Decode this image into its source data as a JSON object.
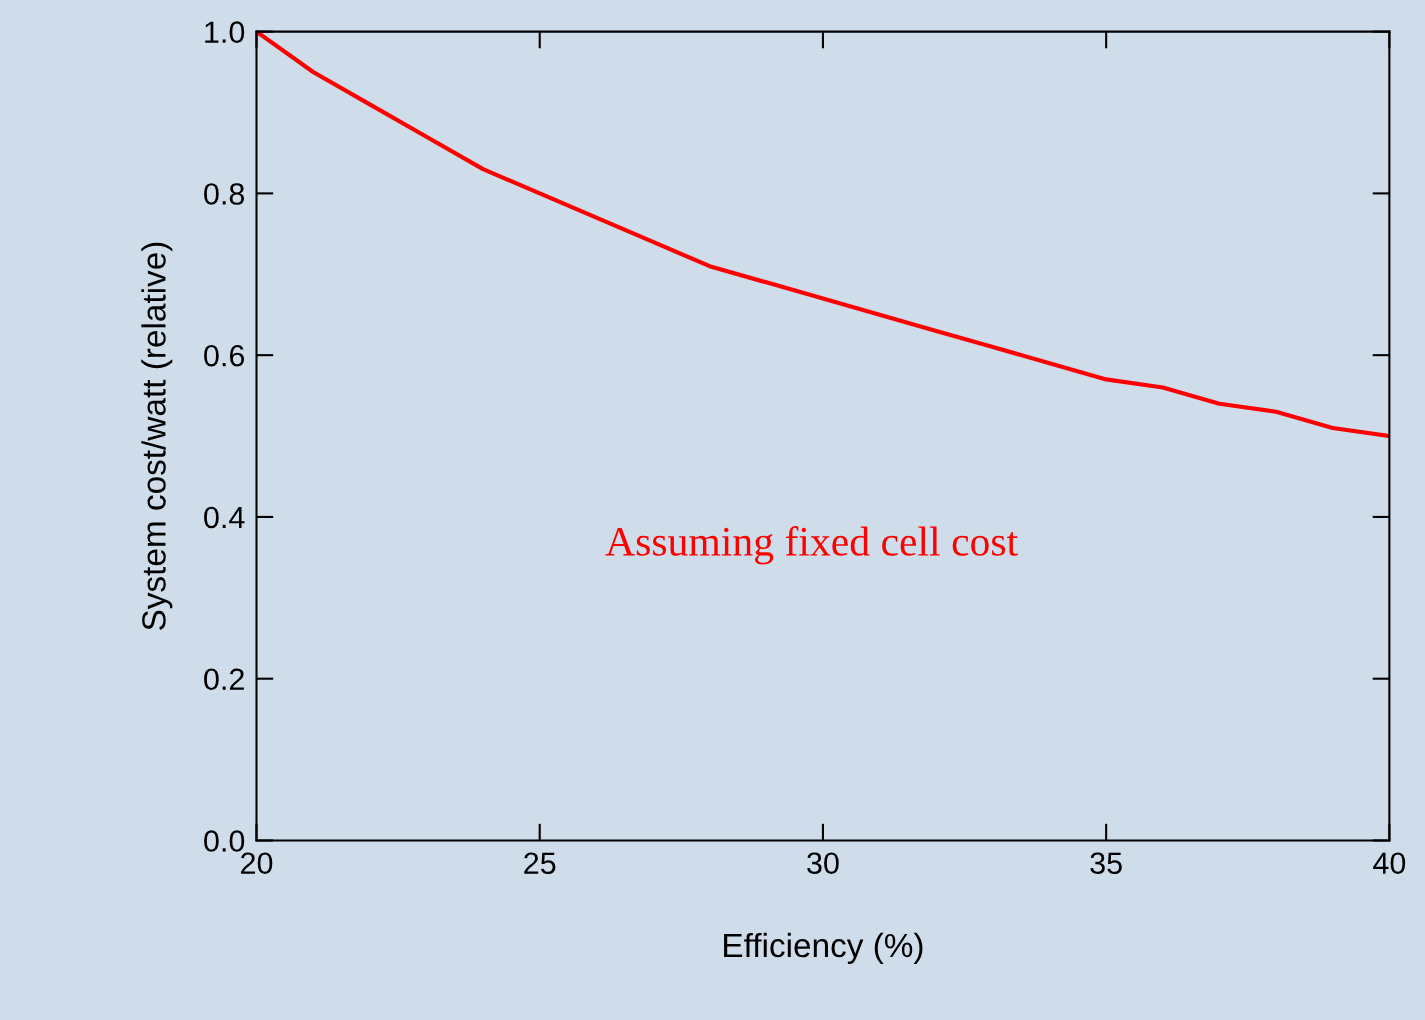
{
  "chart_data": {
    "type": "line",
    "xlabel": "Efficiency (%)",
    "ylabel": "System cost/watt (relative)",
    "x": [
      20,
      21,
      22,
      23,
      24,
      25,
      26,
      27,
      28,
      29,
      30,
      31,
      32,
      33,
      34,
      35,
      36,
      37,
      38,
      39,
      40
    ],
    "series": [
      {
        "color": "#ff0000",
        "values": [
          1.0,
          0.95,
          0.91,
          0.87,
          0.83,
          0.8,
          0.77,
          0.74,
          0.71,
          0.69,
          0.67,
          0.65,
          0.63,
          0.61,
          0.59,
          0.57,
          0.56,
          0.54,
          0.53,
          0.51,
          0.5
        ]
      }
    ],
    "xlim": [
      20,
      40
    ],
    "xticks": [
      20,
      25,
      30,
      35,
      40
    ],
    "ylim": [
      0,
      1.0
    ],
    "yticks": [
      {
        "value": 0,
        "label": "0.0"
      },
      {
        "value": 0.2,
        "label": "0.2"
      },
      {
        "value": 0.4,
        "label": "0.4"
      },
      {
        "value": 0.6,
        "label": "0.6"
      },
      {
        "value": 0.8,
        "label": "0.8"
      },
      {
        "value": 1.0,
        "label": "1.0"
      }
    ],
    "grid": false,
    "marker": "none",
    "line_style": "solid",
    "annotations": [
      "Assuming fixed cell cost"
    ]
  }
}
